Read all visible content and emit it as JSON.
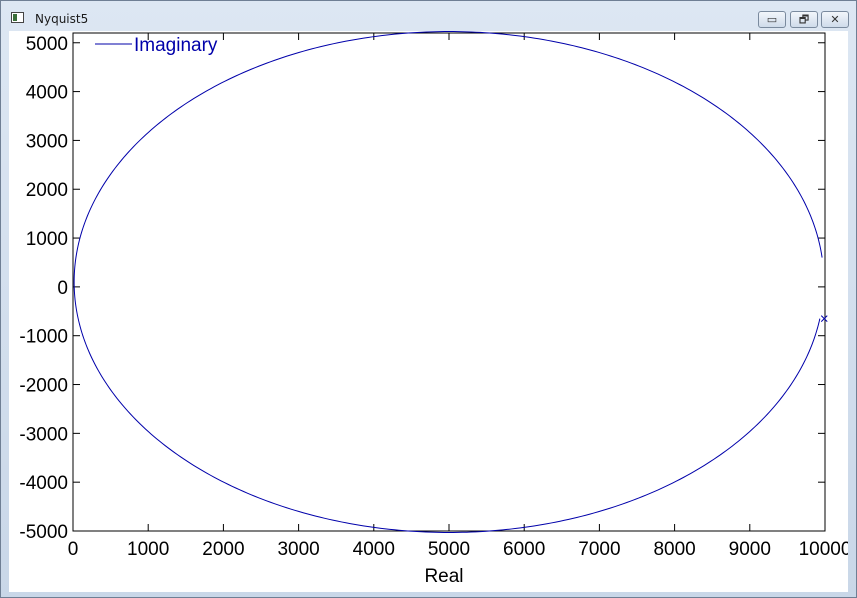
{
  "window": {
    "title": "Nyquist5",
    "buttons": {
      "minimize": "▭",
      "restore": "🗗",
      "close": "✕"
    }
  },
  "chart_data": {
    "type": "line",
    "xlabel": "Real",
    "ylabel": "",
    "legend": {
      "entries": [
        "Imaginary"
      ],
      "position": "top-left"
    },
    "xlim": [
      0,
      10000
    ],
    "ylim": [
      -5000,
      5200
    ],
    "xticks": [
      0,
      1000,
      2000,
      3000,
      4000,
      5000,
      6000,
      7000,
      8000,
      9000,
      10000
    ],
    "yticks": [
      -5000,
      -4000,
      -3000,
      -2000,
      -1000,
      0,
      1000,
      2000,
      3000,
      4000,
      5000
    ],
    "grid": false,
    "color": "#0000aa",
    "series": [
      {
        "name": "Imaginary",
        "description_shape": "ellipse",
        "center": [
          5000,
          100
        ],
        "radius": [
          4985,
          5130
        ],
        "end_marker": {
          "x": 9990,
          "y": -650,
          "symbol": "x"
        },
        "gap_between": [
          [
            10000,
            -650
          ],
          [
            9960,
            600
          ]
        ]
      }
    ]
  }
}
